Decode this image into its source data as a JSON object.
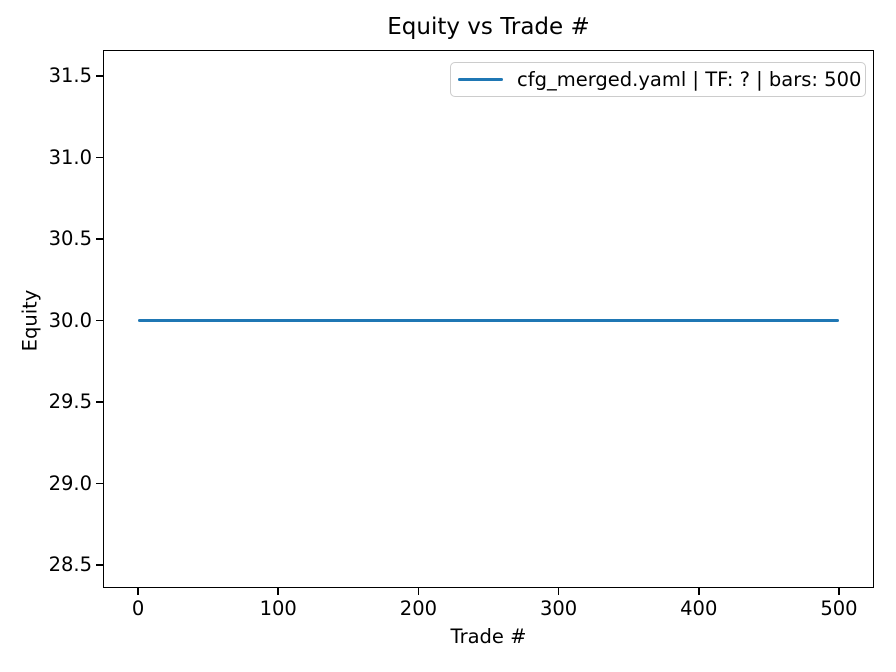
{
  "chart_data": {
    "type": "line",
    "title": "Equity vs Trade #",
    "xlabel": "Trade #",
    "ylabel": "Equity",
    "xlim": [
      -25,
      525
    ],
    "ylim": [
      28.36,
      31.66
    ],
    "xticks": [
      {
        "value": 0,
        "label": "0"
      },
      {
        "value": 100,
        "label": "100"
      },
      {
        "value": 200,
        "label": "200"
      },
      {
        "value": 300,
        "label": "300"
      },
      {
        "value": 400,
        "label": "400"
      },
      {
        "value": 500,
        "label": "500"
      }
    ],
    "yticks": [
      {
        "value": 28.5,
        "label": "28.5"
      },
      {
        "value": 29.0,
        "label": "29.0"
      },
      {
        "value": 29.5,
        "label": "29.5"
      },
      {
        "value": 30.0,
        "label": "30.0"
      },
      {
        "value": 30.5,
        "label": "30.5"
      },
      {
        "value": 31.0,
        "label": "31.0"
      },
      {
        "value": 31.5,
        "label": "31.5"
      }
    ],
    "grid": false,
    "legend_position": "upper right",
    "series": [
      {
        "name": "cfg_merged.yaml | TF: ? | bars: 500",
        "color": "#1f77b4",
        "x": [
          0,
          500
        ],
        "y": [
          30.0,
          30.0
        ],
        "note": "constant equity of 30.0 for all 500 trades"
      }
    ],
    "colors": {
      "line": "#1f77b4",
      "spine": "#000000",
      "legend_border": "#cccccc",
      "background": "#ffffff"
    }
  }
}
